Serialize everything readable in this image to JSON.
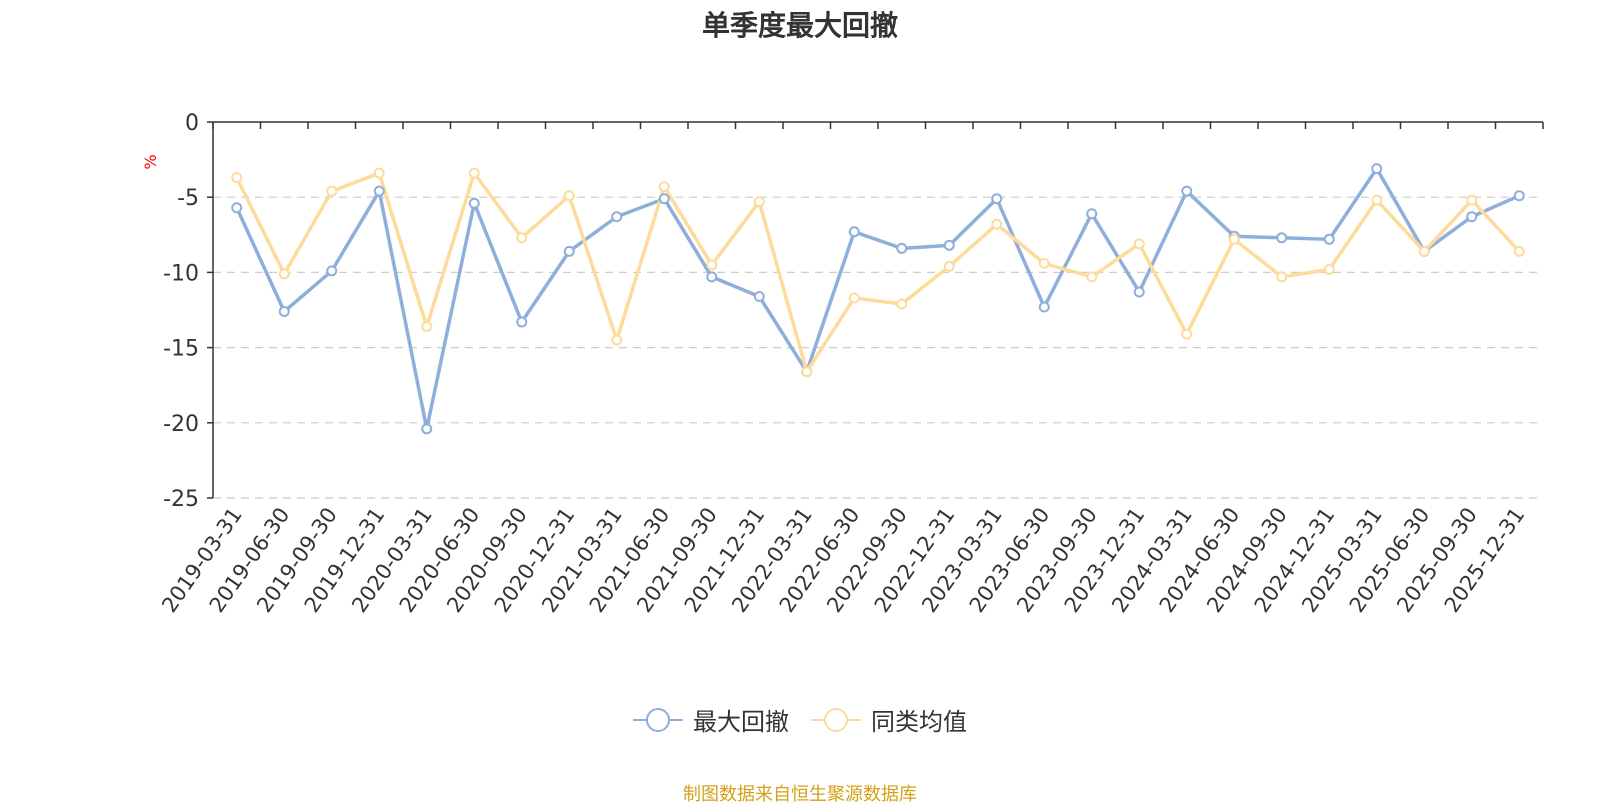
{
  "title": "单季度最大回撤",
  "source": "制图数据来自恒生聚源数据库",
  "chart_data": {
    "type": "line",
    "title": "单季度最大回撤",
    "ylabel": "%",
    "ylim": [
      -25,
      0
    ],
    "yticks": [
      0,
      -5,
      -10,
      -15,
      -20,
      -25
    ],
    "grid": true,
    "legend_position": "bottom-center",
    "categories": [
      "2019-03-31",
      "2019-06-30",
      "2019-09-30",
      "2019-12-31",
      "2020-03-31",
      "2020-06-30",
      "2020-09-30",
      "2020-12-31",
      "2021-03-31",
      "2021-06-30",
      "2021-09-30",
      "2021-12-31",
      "2022-03-31",
      "2022-06-30",
      "2022-09-30",
      "2022-12-31",
      "2023-03-31",
      "2023-06-30",
      "2023-09-30",
      "2023-12-31",
      "2024-03-31",
      "2024-06-30",
      "2024-09-30",
      "2024-12-31",
      "2025-03-31",
      "2025-06-30",
      "2025-09-30",
      "2025-12-31"
    ],
    "series": [
      {
        "name": "最大回撤",
        "color": "#8eaedc",
        "values": [
          -5.7,
          -12.6,
          -9.9,
          -4.6,
          -20.4,
          -5.4,
          -13.3,
          -8.6,
          -6.3,
          -5.1,
          -10.3,
          -11.6,
          -16.6,
          -7.3,
          -8.4,
          -8.2,
          -5.1,
          -12.3,
          -6.1,
          -11.3,
          -4.6,
          -7.6,
          -7.7,
          -7.8,
          -3.1,
          -8.6,
          -6.3,
          -4.9
        ]
      },
      {
        "name": "同类均值",
        "color": "#fddb9a",
        "values": [
          -3.7,
          -10.1,
          -4.6,
          -3.4,
          -13.6,
          -3.4,
          -7.7,
          -4.9,
          -14.5,
          -4.3,
          -9.5,
          -5.3,
          -16.6,
          -11.7,
          -12.1,
          -9.6,
          -6.8,
          -9.4,
          -10.3,
          -8.1,
          -14.1,
          -7.8,
          -10.3,
          -9.8,
          -5.2,
          -8.6,
          -5.2,
          -8.6
        ]
      }
    ]
  }
}
